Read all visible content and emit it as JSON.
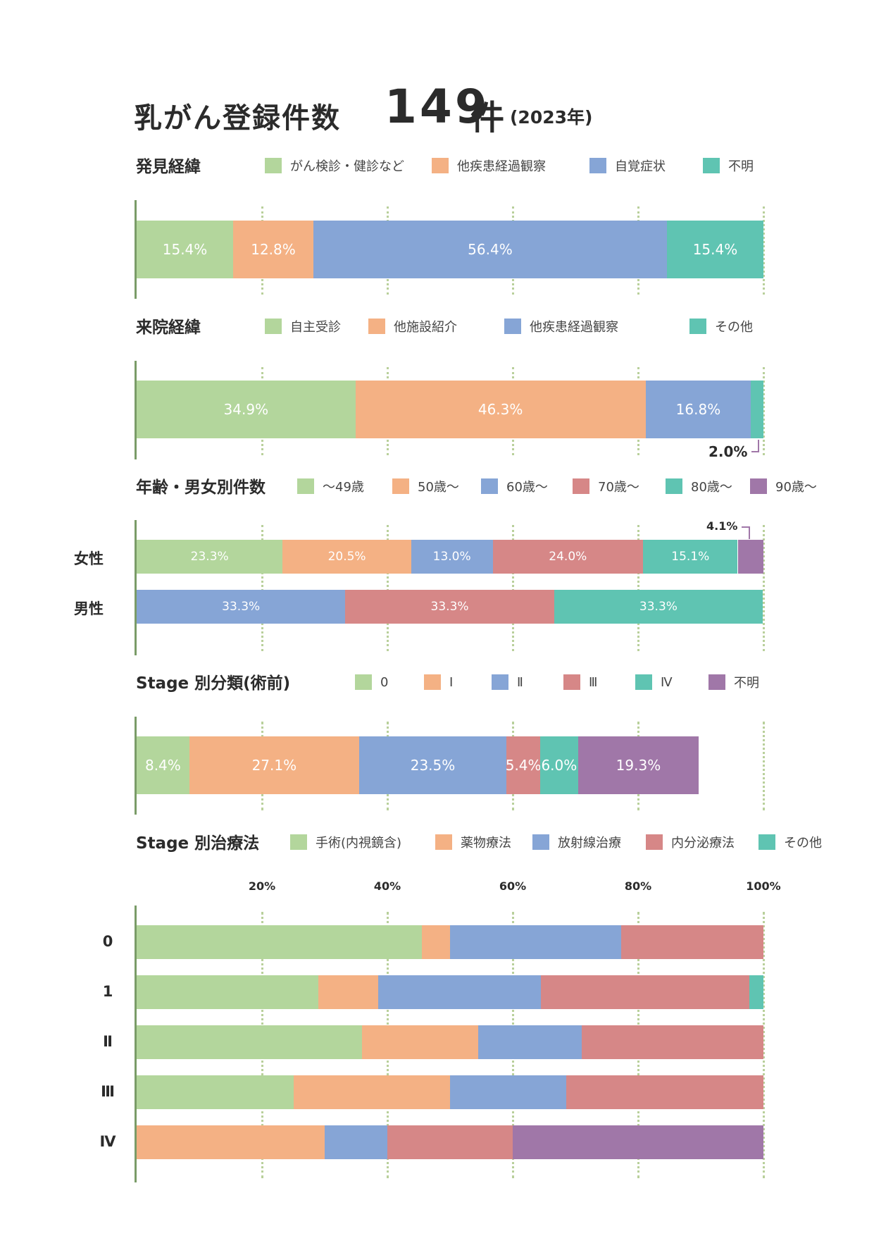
{
  "title": {
    "main": "乳がん登録件数",
    "count": "149",
    "unit": "件",
    "year": "(2023年)"
  },
  "colors": {
    "green": "#b3d69c",
    "orange": "#f4b184",
    "blue": "#86a5d6",
    "red": "#d68787",
    "teal": "#5fc4b2",
    "purple": "#a077a8"
  },
  "chart_data": [
    {
      "type": "bar",
      "orientation": "horizontal-stacked",
      "title": "発見経緯",
      "legend_position": "top",
      "series": [
        {
          "name": "がん検診・健診など",
          "color": "green",
          "values": [
            15.4
          ]
        },
        {
          "name": "他疾患経過観察",
          "color": "orange",
          "values": [
            12.8
          ]
        },
        {
          "name": "自覚症状",
          "color": "blue",
          "values": [
            56.4
          ]
        },
        {
          "name": "不明",
          "color": "teal",
          "values": [
            15.4
          ]
        }
      ],
      "labels": [
        [
          "15.4%",
          "12.8%",
          "56.4%",
          "15.4%"
        ]
      ],
      "xlim": [
        0,
        100
      ]
    },
    {
      "type": "bar",
      "orientation": "horizontal-stacked",
      "title": "来院経緯",
      "legend_position": "top",
      "series": [
        {
          "name": "自主受診",
          "color": "green",
          "values": [
            34.9
          ]
        },
        {
          "name": "他施設紹介",
          "color": "orange",
          "values": [
            46.3
          ]
        },
        {
          "name": "他疾患経過観察",
          "color": "blue",
          "values": [
            16.8
          ]
        },
        {
          "name": "その他",
          "color": "teal",
          "values": [
            2.0
          ]
        }
      ],
      "labels": [
        [
          "34.9%",
          "46.3%",
          "16.8%",
          ""
        ]
      ],
      "callouts": [
        "2.0%"
      ],
      "xlim": [
        0,
        100
      ]
    },
    {
      "type": "bar",
      "orientation": "horizontal-stacked",
      "title": "年齢・男女別件数",
      "legend_position": "top",
      "categories": [
        "女性",
        "男性"
      ],
      "series": [
        {
          "name": "〜49歳",
          "color": "green",
          "values": [
            23.3,
            0
          ]
        },
        {
          "name": "50歳〜",
          "color": "orange",
          "values": [
            20.5,
            0
          ]
        },
        {
          "name": "60歳〜",
          "color": "blue",
          "values": [
            13.0,
            33.3
          ]
        },
        {
          "name": "70歳〜",
          "color": "red",
          "values": [
            24.0,
            33.3
          ]
        },
        {
          "name": "80歳〜",
          "color": "teal",
          "values": [
            15.1,
            33.3
          ]
        },
        {
          "name": "90歳〜",
          "color": "purple",
          "values": [
            4.1,
            0
          ]
        }
      ],
      "labels": [
        [
          "23.3%",
          "20.5%",
          "13.0%",
          "24.0%",
          "15.1%",
          ""
        ],
        [
          "",
          "",
          "33.3%",
          "33.3%",
          "33.3%",
          ""
        ]
      ],
      "callouts": [
        "4.1%"
      ],
      "xlim": [
        0,
        100
      ]
    },
    {
      "type": "bar",
      "orientation": "horizontal-stacked",
      "title": "Stage 別分類(術前)",
      "legend_position": "top",
      "series": [
        {
          "name": "0",
          "color": "green",
          "values": [
            8.4
          ]
        },
        {
          "name": "Ⅰ",
          "color": "orange",
          "values": [
            27.1
          ]
        },
        {
          "name": "Ⅱ",
          "color": "blue",
          "values": [
            23.5
          ]
        },
        {
          "name": "Ⅲ",
          "color": "red",
          "values": [
            5.4
          ]
        },
        {
          "name": "Ⅳ",
          "color": "teal",
          "values": [
            6.0
          ]
        },
        {
          "name": "不明",
          "color": "purple",
          "values": [
            19.3
          ]
        }
      ],
      "labels": [
        [
          "8.4%",
          "27.1%",
          "23.5%",
          "5.4%",
          "6.0%",
          "19.3%"
        ]
      ],
      "xlim": [
        0,
        100
      ]
    },
    {
      "type": "bar",
      "orientation": "horizontal-stacked",
      "title": "Stage 別治療法",
      "legend_position": "top",
      "categories": [
        "0",
        "1",
        "Ⅱ",
        "Ⅲ",
        "Ⅳ"
      ],
      "series": [
        {
          "name": "手術(内視鏡含)",
          "color": "green",
          "values": [
            45.5,
            29.0,
            36.0,
            25.0,
            0
          ]
        },
        {
          "name": "薬物療法",
          "color": "orange",
          "values": [
            4.5,
            9.5,
            18.5,
            25.0,
            30.0
          ]
        },
        {
          "name": "放射線治療",
          "color": "blue",
          "values": [
            27.3,
            26.0,
            16.5,
            18.5,
            10.0
          ]
        },
        {
          "name": "内分泌療法",
          "color": "red",
          "values": [
            22.7,
            33.3,
            29.0,
            31.5,
            20.0
          ]
        },
        {
          "name": "その他",
          "color": "teal",
          "values": [
            0,
            2.2,
            0,
            0,
            0
          ]
        },
        {
          "name": "",
          "color": "purple",
          "values": [
            0,
            0,
            0,
            0,
            40.0
          ]
        }
      ],
      "xticks": [
        "20%",
        "40%",
        "60%",
        "80%",
        "100%"
      ],
      "xlim": [
        0,
        100
      ]
    }
  ]
}
